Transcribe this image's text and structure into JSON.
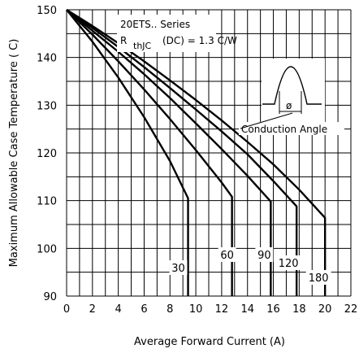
{
  "chart_data": {
    "type": "line",
    "title": "",
    "xlabel": "Average Forward Current (A)",
    "ylabel": "Maximum Allowable Case Temperature ( C)",
    "xlim": [
      0,
      22
    ],
    "ylim": [
      90,
      150
    ],
    "x_ticks": [
      0,
      2,
      4,
      6,
      8,
      10,
      12,
      14,
      16,
      18,
      20,
      22
    ],
    "y_ticks": [
      90,
      100,
      110,
      120,
      130,
      140,
      150
    ],
    "x_tick_labels": [
      "0",
      "2",
      "4",
      "6",
      "8",
      "10",
      "12",
      "14",
      "16",
      "18",
      "20",
      "22"
    ],
    "y_tick_labels": [
      "90",
      "100",
      "110",
      "120",
      "130",
      "140",
      "150"
    ],
    "grid": true,
    "annotations": {
      "series_title": "20ETS.. Series",
      "rth_prefix": "R",
      "rth_sub": "thJC",
      "rth_suffix": "(DC) = 1.3  C/W",
      "waveform_symbol": "ø",
      "waveform_label": "Conduction Angle"
    },
    "series": [
      {
        "label": "30",
        "x": [
          0,
          2,
          4,
          6,
          8,
          9.4,
          9.4
        ],
        "y": [
          150,
          143.3,
          135.8,
          127.5,
          118.3,
          110.5,
          90
        ]
      },
      {
        "label": "60",
        "x": [
          0,
          2,
          4,
          6,
          8,
          10,
          12,
          12.8,
          12.8
        ],
        "y": [
          150,
          144.8,
          139.2,
          133.3,
          127.1,
          120.6,
          113.8,
          110.8,
          90
        ]
      },
      {
        "label": "90",
        "x": [
          0,
          2,
          4,
          6,
          8,
          10,
          12,
          14,
          15.8,
          15.8
        ],
        "y": [
          150,
          145.6,
          141.2,
          136.5,
          131.5,
          126.2,
          120.8,
          115.2,
          109.8,
          90
        ]
      },
      {
        "label": "120",
        "x": [
          0,
          2,
          4,
          6,
          8,
          10,
          12,
          14,
          16,
          17.8,
          17.8
        ],
        "y": [
          150,
          146.2,
          142.2,
          138,
          133.6,
          129.1,
          124.5,
          119.7,
          114.1,
          108.8,
          90
        ]
      },
      {
        "label": "180",
        "x": [
          0,
          2,
          4,
          6,
          8,
          10,
          12,
          14,
          16,
          18,
          20,
          20,
          20
        ],
        "y": [
          150,
          146.6,
          143,
          139.2,
          135.2,
          131.1,
          126.8,
          122.3,
          117.6,
          112.3,
          106.4,
          106.4,
          90
        ]
      }
    ]
  }
}
